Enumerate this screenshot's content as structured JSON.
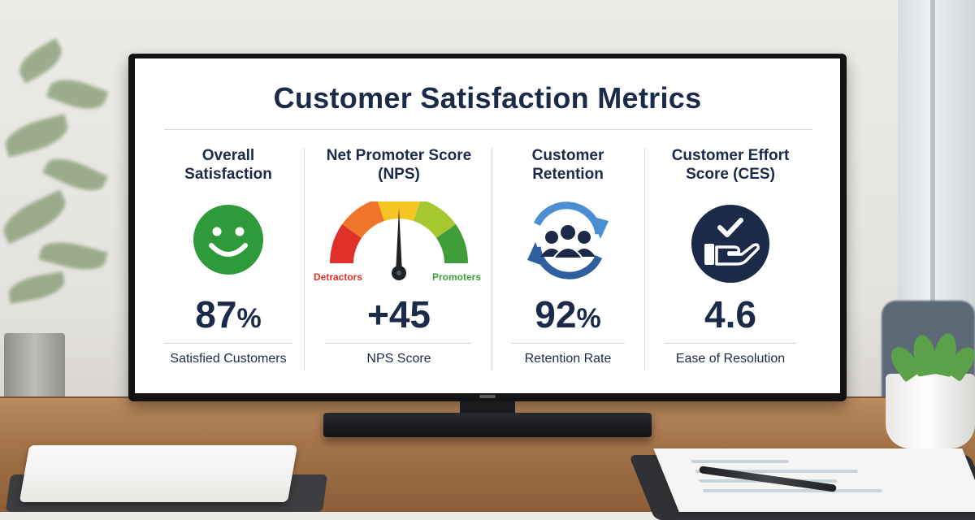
{
  "dashboard": {
    "title": "Customer Satisfaction Metrics",
    "metrics": [
      {
        "title_line1": "Overall",
        "title_line2": "Satisfaction",
        "icon": "smiley-face-icon",
        "value": "87",
        "unit": "%",
        "caption": "Satisfied Customers"
      },
      {
        "title_line1": "Net Promoter Score",
        "title_line2": "(NPS)",
        "icon": "gauge-icon",
        "gauge_left_label": "Detractors",
        "gauge_right_label": "Promoters",
        "value": "+45",
        "unit": "",
        "caption": "NPS Score"
      },
      {
        "title_line1": "Customer",
        "title_line2": "Retention",
        "icon": "retention-cycle-icon",
        "value": "92",
        "unit": "%",
        "caption": "Retention Rate"
      },
      {
        "title_line1": "Customer Effort",
        "title_line2": "Score (CES)",
        "icon": "hand-checkmark-icon",
        "value": "4.6",
        "unit": "",
        "caption": "Ease of Resolution"
      }
    ]
  },
  "colors": {
    "navy": "#1c2a4a",
    "smiley_green": "#2e9a3a",
    "retention_blue": "#2f5f9e",
    "gauge_red": "#e0302a",
    "gauge_orange": "#f0742a",
    "gauge_yellow": "#f5c524",
    "gauge_lime": "#a6c72e",
    "gauge_green": "#3f9e3a",
    "detractors_red": "#e0302a",
    "promoters_green": "#3f9e3a"
  }
}
